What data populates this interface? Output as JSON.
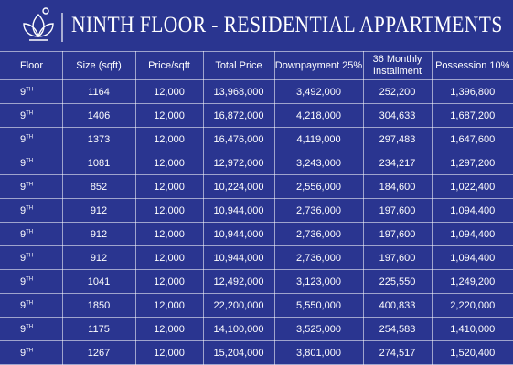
{
  "header": {
    "title": "NINTH FLOOR - RESIDENTIAL APPARTMENTS"
  },
  "table": {
    "columns": [
      "Floor",
      "Size (sqft)",
      "Price/sqft",
      "Total Price",
      "Downpayment 25%",
      "36 Monthly Installment",
      "Possession 10%"
    ],
    "rows": [
      {
        "floor": "9",
        "floor_suffix": "TH",
        "cells": [
          "1164",
          "12,000",
          "13,968,000",
          "3,492,000",
          "252,200",
          "1,396,800"
        ]
      },
      {
        "floor": "9",
        "floor_suffix": "TH",
        "cells": [
          "1406",
          "12,000",
          "16,872,000",
          "4,218,000",
          "304,633",
          "1,687,200"
        ]
      },
      {
        "floor": "9",
        "floor_suffix": "TH",
        "cells": [
          "1373",
          "12,000",
          "16,476,000",
          "4,119,000",
          "297,483",
          "1,647,600"
        ]
      },
      {
        "floor": "9",
        "floor_suffix": "TH",
        "cells": [
          "1081",
          "12,000",
          "12,972,000",
          "3,243,000",
          "234,217",
          "1,297,200"
        ]
      },
      {
        "floor": "9",
        "floor_suffix": "TH",
        "cells": [
          "852",
          "12,000",
          "10,224,000",
          "2,556,000",
          "184,600",
          "1,022,400"
        ]
      },
      {
        "floor": "9",
        "floor_suffix": "TH",
        "cells": [
          "912",
          "12,000",
          "10,944,000",
          "2,736,000",
          "197,600",
          "1,094,400"
        ]
      },
      {
        "floor": "9",
        "floor_suffix": "TH",
        "cells": [
          "912",
          "12,000",
          "10,944,000",
          "2,736,000",
          "197,600",
          "1,094,400"
        ]
      },
      {
        "floor": "9",
        "floor_suffix": "TH",
        "cells": [
          "912",
          "12,000",
          "10,944,000",
          "2,736,000",
          "197,600",
          "1,094,400"
        ]
      },
      {
        "floor": "9",
        "floor_suffix": "TH",
        "cells": [
          "1041",
          "12,000",
          "12,492,000",
          "3,123,000",
          "225,550",
          "1,249,200"
        ]
      },
      {
        "floor": "9",
        "floor_suffix": "TH",
        "cells": [
          "1850",
          "12,000",
          "22,200,000",
          "5,550,000",
          "400,833",
          "2,220,000"
        ]
      },
      {
        "floor": "9",
        "floor_suffix": "TH",
        "cells": [
          "1175",
          "12,000",
          "14,100,000",
          "3,525,000",
          "254,583",
          "1,410,000"
        ]
      },
      {
        "floor": "9",
        "floor_suffix": "TH",
        "cells": [
          "1267",
          "12,000",
          "15,204,000",
          "3,801,000",
          "274,517",
          "1,520,400"
        ]
      }
    ]
  }
}
